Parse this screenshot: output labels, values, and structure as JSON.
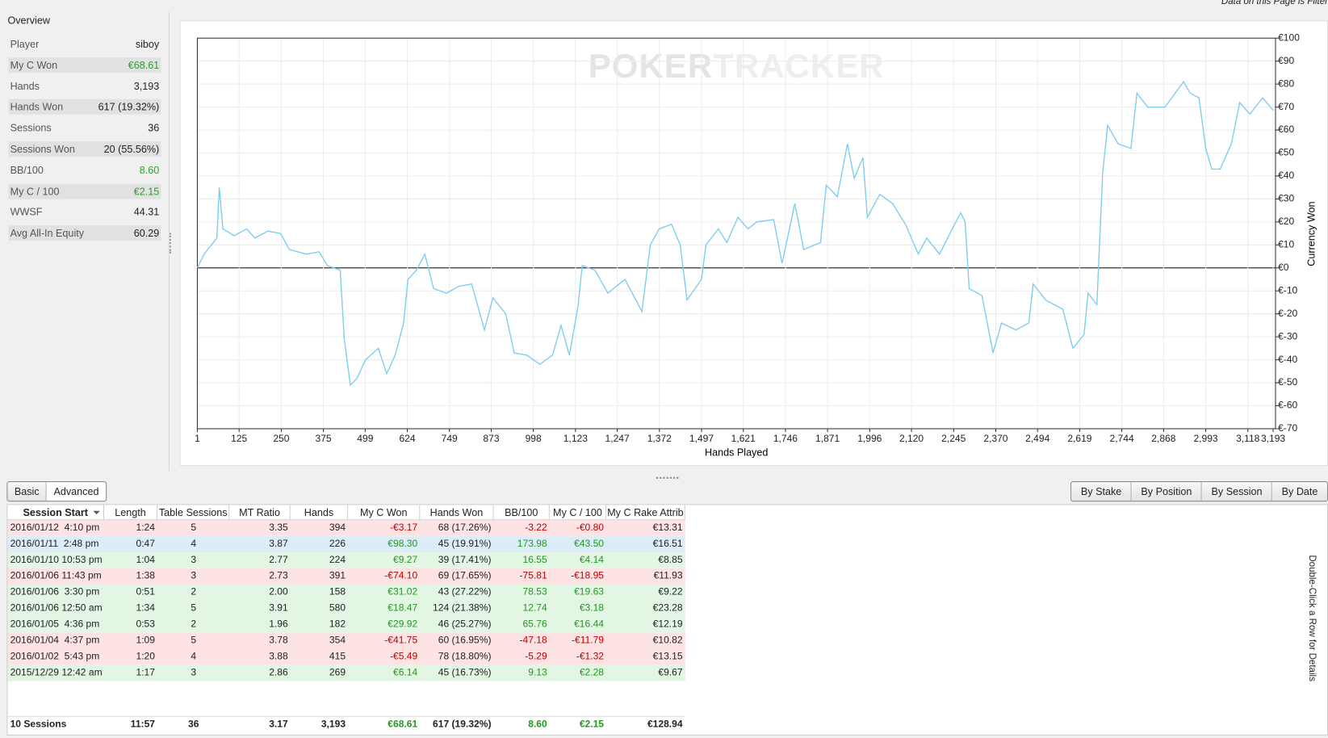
{
  "header": {
    "filter_note": "Data on this Page is Filter"
  },
  "overview": {
    "title": "Overview",
    "rows": [
      {
        "label": "Player",
        "value": "siboy"
      },
      {
        "label": "My C Won",
        "value": "€68.61",
        "color": "#2e9e2e"
      },
      {
        "label": "Hands",
        "value": "3,193"
      },
      {
        "label": "Hands Won",
        "value": "617 (19.32%)"
      },
      {
        "label": "Sessions",
        "value": "36"
      },
      {
        "label": "Sessions Won",
        "value": "20 (55.56%)"
      },
      {
        "label": "BB/100",
        "value": "8.60",
        "color": "#2e9e2e"
      },
      {
        "label": "My C / 100",
        "value": "€2.15",
        "color": "#2e9e2e"
      },
      {
        "label": "WWSF",
        "value": "44.31"
      },
      {
        "label": "Avg All-In Equity",
        "value": "60.29"
      }
    ]
  },
  "chart_data": {
    "type": "line",
    "watermark": [
      "POKER",
      "TRACKER"
    ],
    "xlabel": "Hands Played",
    "ylabel": "Currency Won",
    "color": "#7ccdee",
    "grid": true,
    "xlim": [
      1,
      3200
    ],
    "ylim": [
      -70,
      100
    ],
    "xticks": [
      1,
      125,
      250,
      375,
      499,
      624,
      749,
      873,
      998,
      {
        "value": 1123,
        "label": "1,123"
      },
      {
        "value": 1247,
        "label": "1,247"
      },
      {
        "value": 1372,
        "label": "1,372"
      },
      {
        "value": 1497,
        "label": "1,497"
      },
      {
        "value": 1621,
        "label": "1,621"
      },
      {
        "value": 1746,
        "label": "1,746"
      },
      {
        "value": 1871,
        "label": "1,871"
      },
      {
        "value": 1996,
        "label": "1,996"
      },
      {
        "value": 2120,
        "label": "2,120"
      },
      {
        "value": 2245,
        "label": "2,245"
      },
      {
        "value": 2370,
        "label": "2,370"
      },
      {
        "value": 2494,
        "label": "2,494"
      },
      {
        "value": 2619,
        "label": "2,619"
      },
      {
        "value": 2744,
        "label": "2,744"
      },
      {
        "value": 2868,
        "label": "2,868"
      },
      {
        "value": 2993,
        "label": "2,993"
      },
      {
        "value": 3118,
        "label": "3,118"
      },
      {
        "value": 3193,
        "label": "3,193"
      }
    ],
    "yticks": [
      {
        "value": 100,
        "label": "€100"
      },
      {
        "value": 90,
        "label": "€90"
      },
      {
        "value": 80,
        "label": "€80"
      },
      {
        "value": 70,
        "label": "€70"
      },
      {
        "value": 60,
        "label": "€60"
      },
      {
        "value": 50,
        "label": "€50"
      },
      {
        "value": 40,
        "label": "€40"
      },
      {
        "value": 30,
        "label": "€30"
      },
      {
        "value": 20,
        "label": "€20"
      },
      {
        "value": 10,
        "label": "€10"
      },
      {
        "value": 0,
        "label": "€0"
      },
      {
        "value": -10,
        "label": "€-10"
      },
      {
        "value": -20,
        "label": "€-20"
      },
      {
        "value": -30,
        "label": "€-30"
      },
      {
        "value": -40,
        "label": "€-40"
      },
      {
        "value": -50,
        "label": "€-50"
      },
      {
        "value": -60,
        "label": "€-60"
      },
      {
        "value": -70,
        "label": "€-70"
      }
    ],
    "x": [
      1,
      21,
      59,
      66,
      77,
      110,
      147,
      172,
      210,
      248,
      274,
      324,
      362,
      387,
      425,
      437,
      455,
      475,
      500,
      538,
      563,
      588,
      613,
      626,
      651,
      676,
      702,
      740,
      777,
      815,
      853,
      878,
      916,
      941,
      979,
      1017,
      1055,
      1080,
      1105,
      1131,
      1143,
      1181,
      1219,
      1270,
      1320,
      1345,
      1371,
      1408,
      1434,
      1454,
      1497,
      1510,
      1547,
      1572,
      1605,
      1635,
      1661,
      1711,
      1736,
      1774,
      1800,
      1850,
      1867,
      1900,
      1930,
      1950,
      1976,
      1989,
      2026,
      2064,
      2102,
      2140,
      2165,
      2203,
      2241,
      2266,
      2279,
      2291,
      2329,
      2362,
      2387,
      2430,
      2468,
      2481,
      2518,
      2569,
      2599,
      2632,
      2644,
      2670,
      2687,
      2702,
      2733,
      2771,
      2789,
      2821,
      2872,
      2927,
      2947,
      2973,
      2993,
      3011,
      3036,
      3069,
      3094,
      3124,
      3162,
      3193
    ],
    "values": [
      0,
      6,
      13,
      35,
      17,
      14,
      17,
      13,
      16,
      15,
      8,
      6,
      7,
      1,
      -1,
      -31,
      -51,
      -48,
      -40,
      -35,
      -46,
      -38,
      -24,
      -5,
      -1,
      6,
      -9,
      -11,
      -8,
      -7,
      -27,
      -13,
      -20,
      -37,
      -38,
      -42,
      -38,
      -25,
      -38,
      -16,
      1,
      -1,
      -11,
      -5,
      -19,
      10,
      17,
      19,
      10,
      -14,
      -5,
      10,
      17,
      11,
      22,
      17,
      20,
      21,
      2,
      28,
      8,
      11,
      36,
      31,
      54,
      39,
      48,
      22,
      32,
      28,
      19,
      6,
      13,
      6,
      17,
      24,
      20,
      -9,
      -12,
      -37,
      -24,
      -27,
      -24,
      -7,
      -14,
      -18,
      -35,
      -29,
      -11,
      -16,
      41,
      62,
      54,
      52,
      76,
      70,
      70,
      81,
      76,
      74,
      52,
      43,
      43,
      54,
      72,
      67,
      74,
      68.61
    ]
  },
  "tabs": {
    "left": [
      "Basic",
      "Advanced"
    ],
    "right": [
      "By Stake",
      "By Position",
      "By Session",
      "By Date"
    ]
  },
  "table": {
    "columns": [
      "Session Start",
      "Length",
      "Table Sessions",
      "MT Ratio",
      "Hands",
      "My C Won",
      "Hands Won",
      "BB/100",
      "My C / 100",
      "My C Rake Attrib"
    ],
    "selected_row": 1,
    "rows": [
      [
        "2016/01/12  4:10 pm",
        "1:24",
        "5",
        "3.35",
        "394",
        "-€3.17",
        "68 (17.26%)",
        "-3.22",
        "-€0.80",
        "€13.31"
      ],
      [
        "2016/01/11  2:48 pm",
        "0:47",
        "4",
        "3.87",
        "226",
        "€98.30",
        "45 (19.91%)",
        "173.98",
        "€43.50",
        "€16.51"
      ],
      [
        "2016/01/10 10:53 pm",
        "1:04",
        "3",
        "2.77",
        "224",
        "€9.27",
        "39 (17.41%)",
        "16.55",
        "€4.14",
        "€8.85"
      ],
      [
        "2016/01/06 11:43 pm",
        "1:38",
        "3",
        "2.73",
        "391",
        "-€74.10",
        "69 (17.65%)",
        "-75.81",
        "-€18.95",
        "€11.93"
      ],
      [
        "2016/01/06  3:30 pm",
        "0:51",
        "2",
        "2.00",
        "158",
        "€31.02",
        "43 (27.22%)",
        "78.53",
        "€19.63",
        "€9.22"
      ],
      [
        "2016/01/06 12:50 am",
        "1:34",
        "5",
        "3.91",
        "580",
        "€18.47",
        "124 (21.38%)",
        "12.74",
        "€3.18",
        "€23.28"
      ],
      [
        "2016/01/05  4:36 pm",
        "0:53",
        "2",
        "1.96",
        "182",
        "€29.92",
        "46 (25.27%)",
        "65.76",
        "€16.44",
        "€12.19"
      ],
      [
        "2016/01/04  4:37 pm",
        "1:09",
        "5",
        "3.78",
        "354",
        "-€41.75",
        "60 (16.95%)",
        "-47.18",
        "-€11.79",
        "€10.82"
      ],
      [
        "2016/01/02  5:43 pm",
        "1:20",
        "4",
        "3.88",
        "415",
        "-€5.49",
        "78 (18.80%)",
        "-5.29",
        "-€1.32",
        "€13.15"
      ],
      [
        "2015/12/29 12:42 am",
        "1:17",
        "3",
        "2.86",
        "269",
        "€6.14",
        "45 (16.73%)",
        "9.13",
        "€2.28",
        "€9.67"
      ]
    ],
    "totals": [
      "10 Sessions",
      "11:57",
      "36",
      "3.17",
      "3,193",
      "€68.61",
      "617 (19.32%)",
      "8.60",
      "€2.15",
      "€128.94"
    ]
  },
  "hint": "Double-Click a Row for Details"
}
